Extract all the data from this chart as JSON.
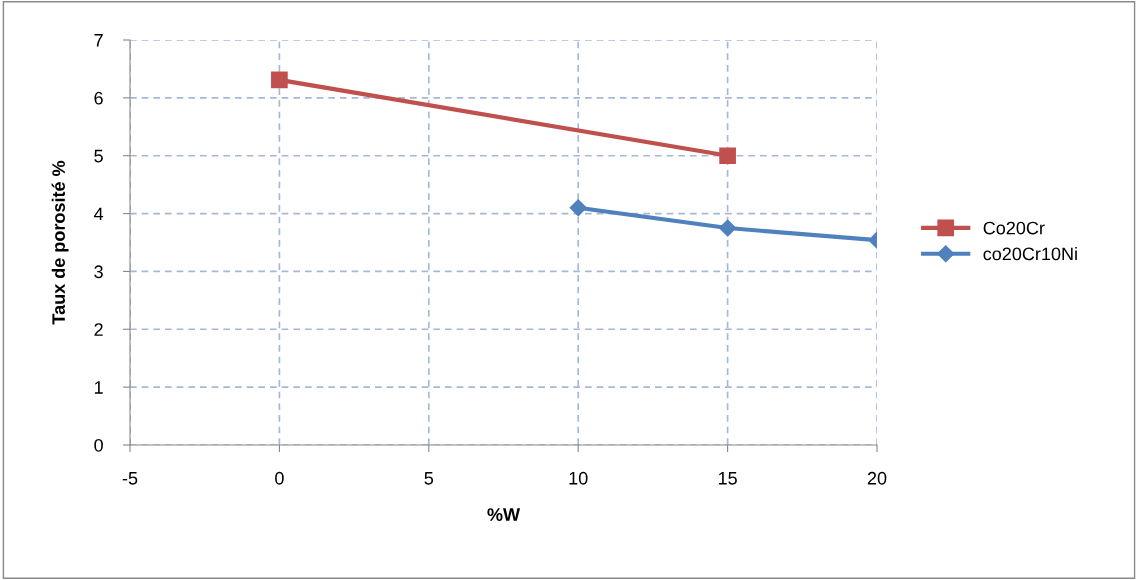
{
  "chart_data": {
    "type": "line",
    "xlabel": "%W",
    "ylabel": "Taux de porosité %",
    "xlim": [
      -5,
      20
    ],
    "xticks": [
      -5,
      0,
      5,
      10,
      15,
      20
    ],
    "ylim": [
      0,
      7
    ],
    "yticks": [
      0,
      1,
      2,
      3,
      4,
      5,
      6,
      7
    ],
    "grid": true,
    "legend": "right",
    "line_style": "solid",
    "series": [
      {
        "name": "Co20Cr",
        "color": "#c0504d",
        "marker": "square",
        "x": [
          0,
          15
        ],
        "values": [
          6.31,
          5.0
        ]
      },
      {
        "name": "co20Cr10Ni",
        "color": "#4f81bd",
        "marker": "diamond",
        "x": [
          10,
          15,
          20
        ],
        "values": [
          4.1,
          3.75,
          3.54
        ]
      }
    ]
  }
}
